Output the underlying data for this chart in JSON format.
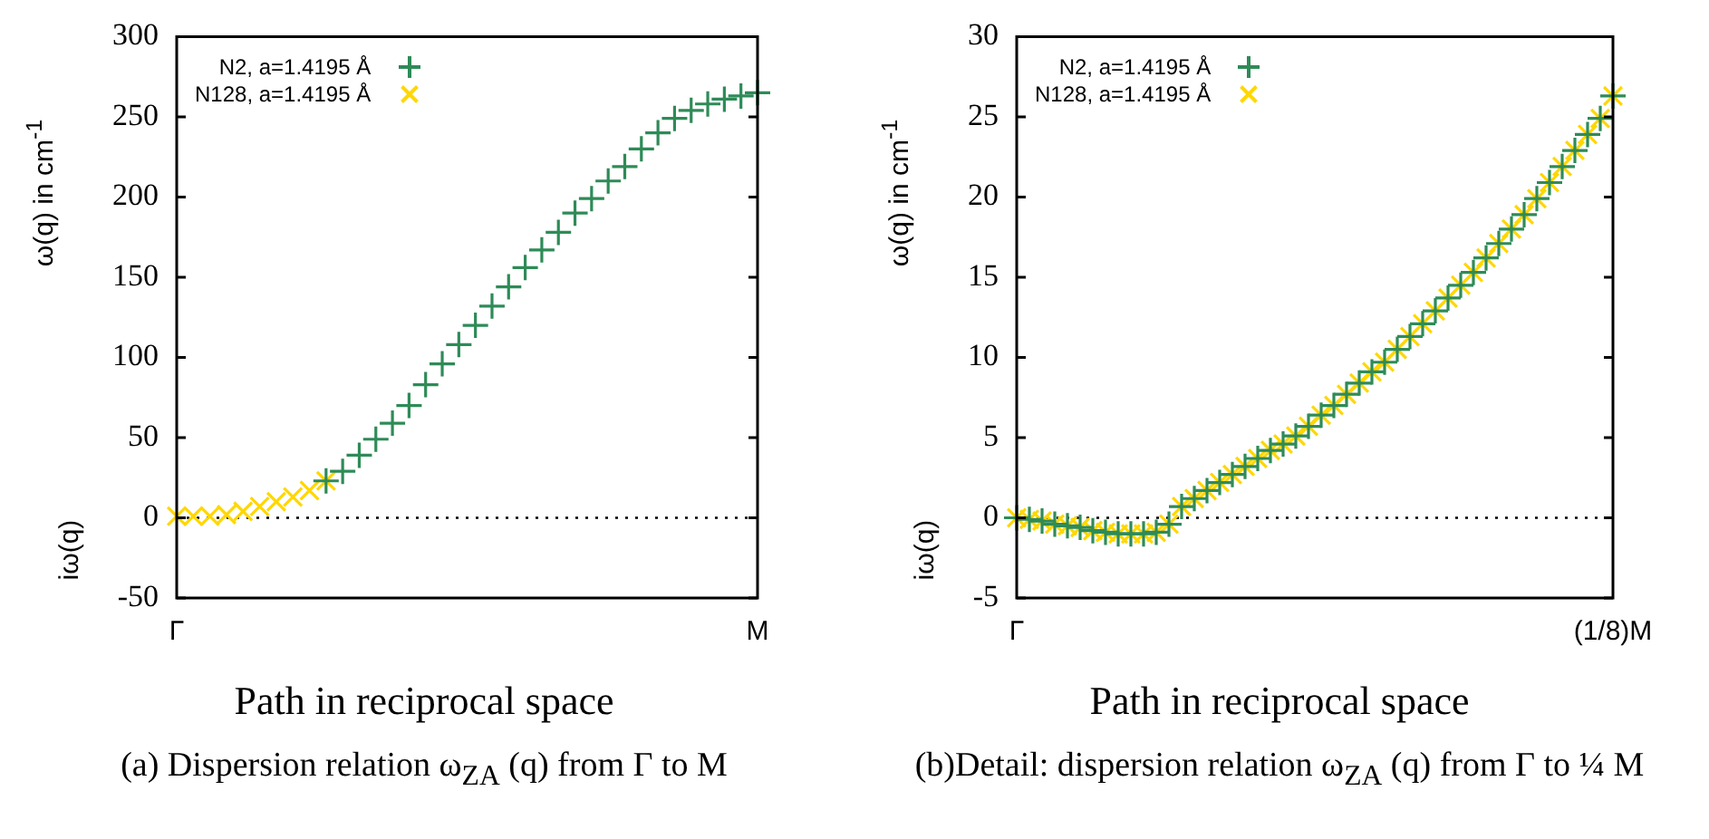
{
  "chart_data": [
    {
      "type": "scatter",
      "xlabel": "Path in reciprocal space",
      "ylabel": "ω(q) in cm$^{-1}$",
      "annotations": [
        "iω(q)",
        "(a) Dispersion relation ω$_{ZA}$ (q) from Γ to M"
      ],
      "categories": [
        "Γ",
        null,
        null,
        null,
        null,
        null,
        null,
        null,
        null,
        null,
        null,
        null,
        null,
        null,
        null,
        null,
        null,
        null,
        null,
        null,
        null,
        null,
        null,
        null,
        null,
        null,
        null,
        null,
        null,
        null,
        null,
        null,
        null,
        null,
        null,
        "M"
      ],
      "ylim": [
        -50,
        300
      ],
      "yticks": [
        -50,
        0,
        50,
        100,
        150,
        200,
        250,
        300
      ],
      "legend": "top left",
      "ref_lines": [
        {
          "axis": "y",
          "value": 0,
          "line_style": "dotted",
          "color": "#000000"
        }
      ],
      "series": [
        {
          "name": "N2, a=1.4195 Å",
          "color": "#2e8b57",
          "marker": "cross",
          "values": [
            null,
            null,
            null,
            null,
            null,
            null,
            null,
            null,
            null,
            23,
            29,
            39,
            49,
            59,
            70,
            83,
            96,
            108,
            120,
            132,
            144,
            156,
            167,
            178,
            190,
            199,
            210,
            219,
            230,
            240,
            249,
            254,
            258,
            261,
            263,
            265
          ]
        },
        {
          "name": "N128, a=1.4195 Å",
          "color": "#ffd700",
          "marker": "x",
          "values": [
            1,
            1,
            1,
            2,
            4,
            7,
            10,
            13,
            17,
            23,
            null,
            null,
            null,
            null,
            null,
            null,
            null,
            null,
            null,
            null,
            null,
            null,
            null,
            null,
            null,
            null,
            null,
            null,
            null,
            null,
            null,
            null,
            null,
            null,
            null,
            null
          ]
        }
      ]
    },
    {
      "type": "scatter",
      "xlabel": "Path in reciprocal space",
      "ylabel": "ω(q) in cm$^{-1}$",
      "annotations": [
        "iω(q)",
        "(b)Detail: dispersion relation ω$_{ZA}$ (q) from Γ to ¼ M"
      ],
      "categories": [
        "Γ",
        null,
        null,
        null,
        null,
        null,
        null,
        null,
        null,
        null,
        null,
        null,
        null,
        null,
        null,
        null,
        null,
        null,
        null,
        null,
        null,
        null,
        null,
        null,
        null,
        null,
        null,
        null,
        null,
        null,
        null,
        null,
        null,
        null,
        null,
        null,
        null,
        null,
        null,
        null,
        null,
        null,
        null,
        null,
        null,
        null,
        null,
        "(1/8)M"
      ],
      "ylim": [
        -5,
        30
      ],
      "yticks": [
        -5,
        0,
        5,
        10,
        15,
        20,
        25,
        30
      ],
      "legend": "top left",
      "ref_lines": [
        {
          "axis": "y",
          "value": 0,
          "line_style": "dotted",
          "color": "#000000"
        }
      ],
      "series": [
        {
          "name": "N2, a=1.4195 Å",
          "color": "#2e8b57",
          "marker": "cross",
          "values": [
            0,
            -0.1,
            -0.2,
            -0.4,
            -0.5,
            -0.6,
            -0.8,
            -0.9,
            -1,
            -1,
            -1,
            -0.9,
            -0.4,
            0.7,
            1.2,
            1.7,
            2.2,
            2.7,
            3.2,
            3.7,
            4.2,
            4.6,
            5.1,
            5.7,
            6.4,
            7.0,
            7.7,
            8.4,
            9.1,
            9.7,
            10.5,
            11.3,
            12.1,
            12.9,
            13.7,
            14.5,
            15.3,
            16.2,
            17.1,
            18.0,
            18.9,
            19.9,
            20.9,
            21.9,
            22.9,
            23.9,
            24.9,
            26.3
          ]
        },
        {
          "name": "N128, a=1.4195 Å",
          "color": "#ffd700",
          "marker": "x",
          "values": [
            0,
            -0.1,
            -0.2,
            -0.4,
            -0.5,
            -0.6,
            -0.8,
            -0.9,
            -1,
            -1,
            -1,
            -0.9,
            -0.4,
            0.7,
            1.2,
            1.7,
            2.2,
            2.7,
            3.2,
            3.7,
            4.2,
            4.6,
            5.1,
            5.7,
            6.4,
            7.0,
            7.7,
            8.4,
            9.1,
            9.7,
            10.5,
            11.3,
            12.1,
            12.9,
            13.7,
            14.5,
            15.3,
            16.2,
            17.1,
            18.0,
            18.9,
            19.9,
            20.9,
            21.9,
            22.9,
            23.9,
            24.9,
            26.3
          ]
        }
      ]
    }
  ]
}
